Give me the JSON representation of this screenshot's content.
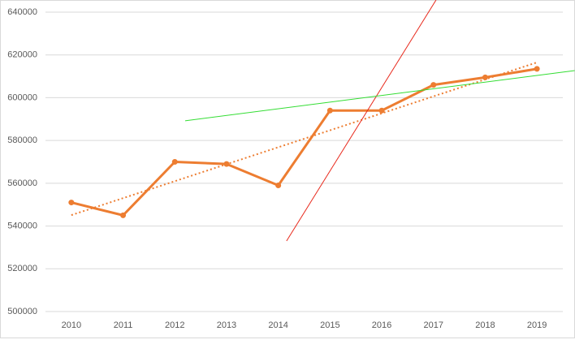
{
  "chart_data": {
    "type": "line",
    "x": [
      2010,
      2011,
      2012,
      2013,
      2014,
      2015,
      2016,
      2017,
      2018,
      2019
    ],
    "xlim": [
      2009.5,
      2019.5
    ],
    "ylim": [
      500000,
      640000
    ],
    "yticks": [
      500000,
      520000,
      540000,
      560000,
      580000,
      600000,
      620000,
      640000
    ],
    "grid": true,
    "series": [
      {
        "color": "#ed7d31",
        "values": [
          551000,
          545000,
          570000,
          569000,
          559000,
          594000,
          594000,
          606000,
          609500,
          613500
        ],
        "markers": true,
        "width": 3
      },
      {
        "color": "#ed7d31",
        "style": "dotted",
        "x": [
          2010,
          2019
        ],
        "values": [
          545100,
          616500
        ],
        "width": 2
      },
      {
        "color": "#e8291c",
        "x": [
          2014.16,
          2017.05
        ],
        "values": [
          533000,
          645700
        ],
        "width": 1
      },
      {
        "color": "#33dd33",
        "x": [
          2012.2,
          2019.73
        ],
        "values": [
          589200,
          612700
        ],
        "width": 1
      }
    ]
  }
}
